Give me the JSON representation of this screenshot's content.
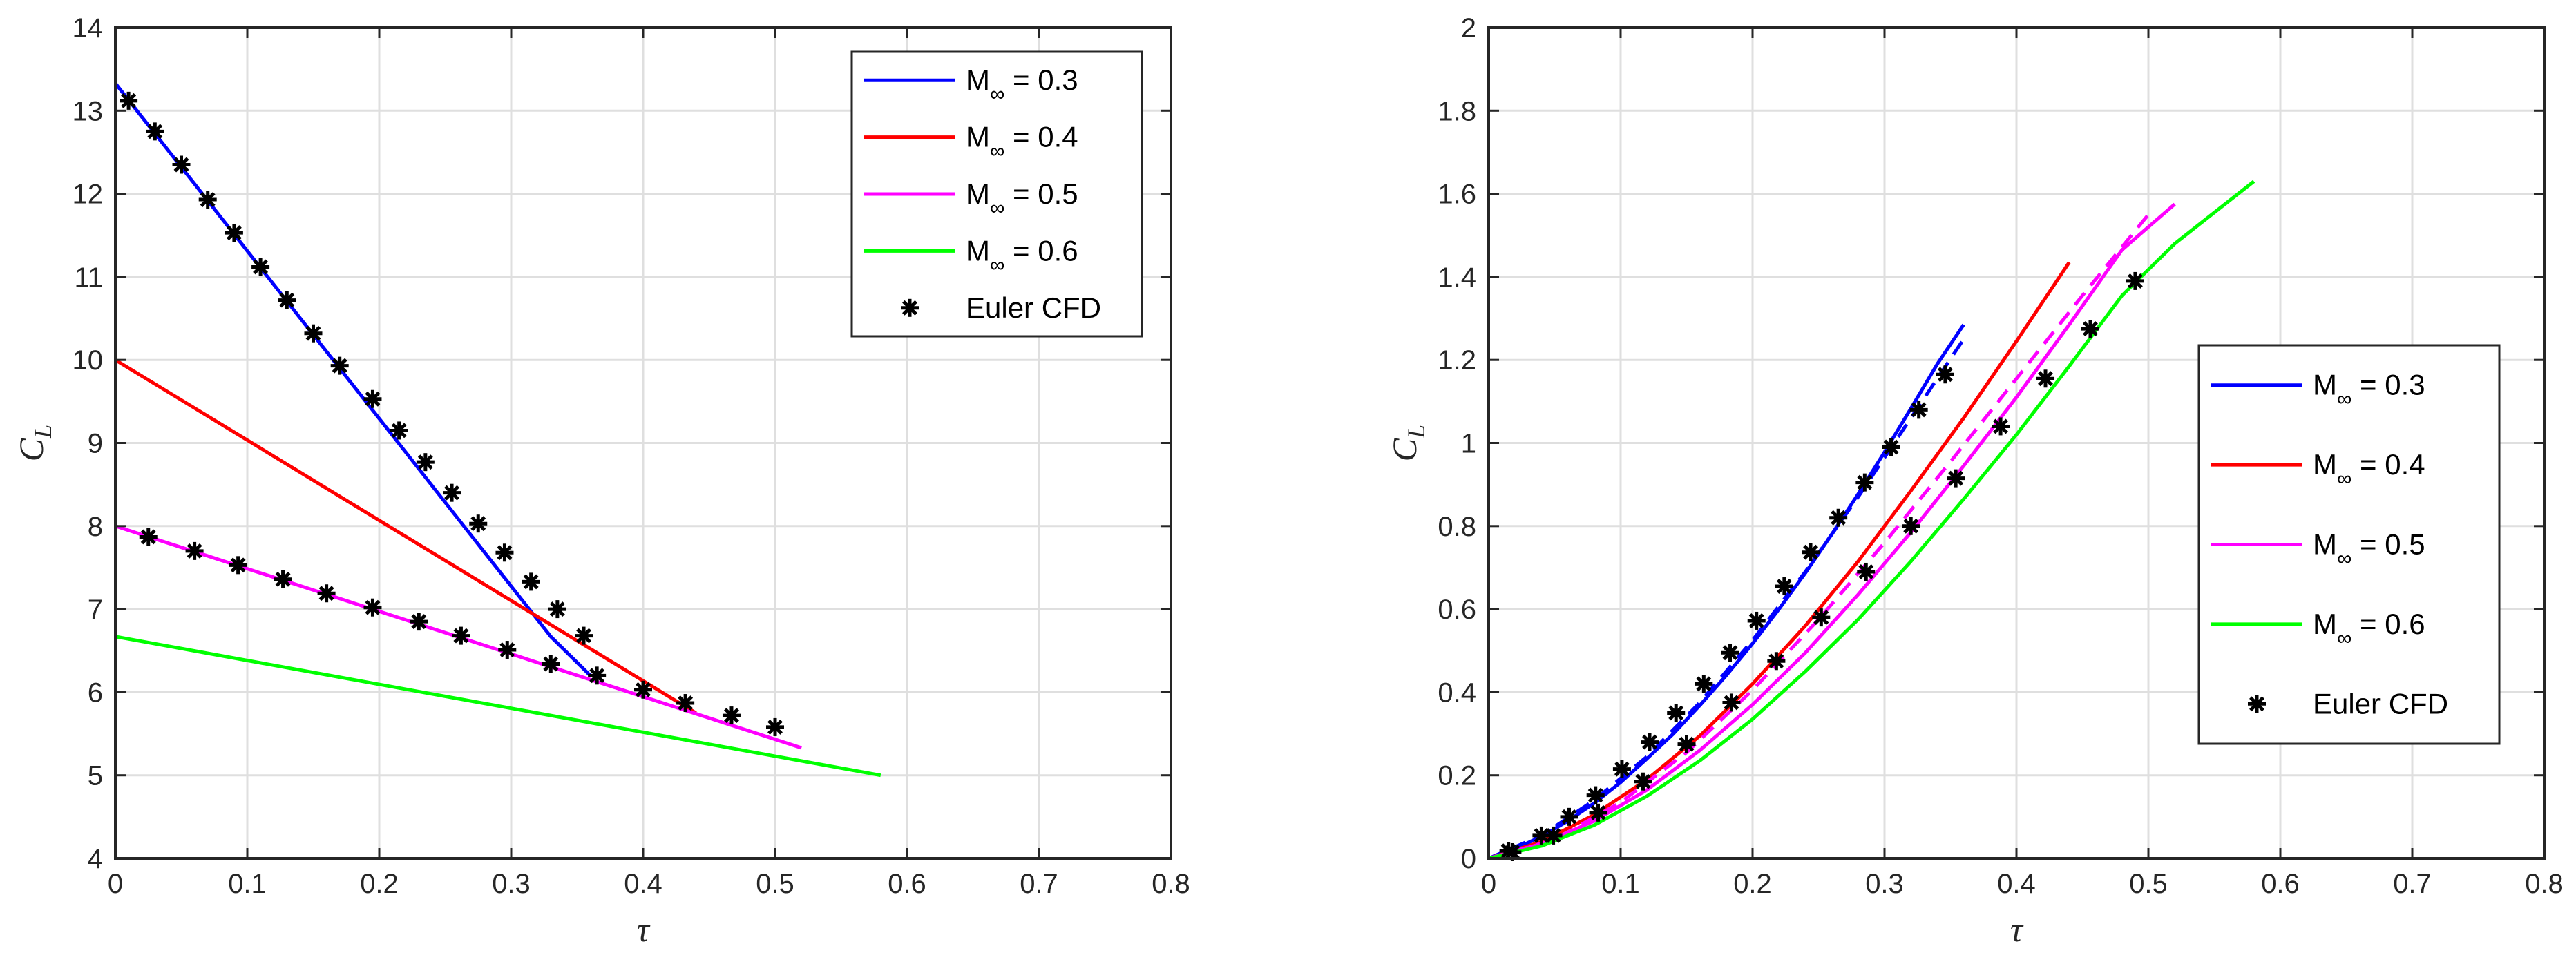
{
  "chart_data": [
    {
      "type": "line",
      "title": "",
      "xlabel": "τ",
      "ylabel": "C_L",
      "xlim": [
        0,
        0.8
      ],
      "ylim": [
        4,
        14
      ],
      "xticks": [
        "0",
        "0.1",
        "0.2",
        "0.3",
        "0.4",
        "0.5",
        "0.6",
        "0.7",
        "0.8"
      ],
      "yticks": [
        "4",
        "5",
        "6",
        "7",
        "8",
        "9",
        "10",
        "11",
        "12",
        "13",
        "14"
      ],
      "grid": true,
      "legend_position": "top-right",
      "series": [
        {
          "name": "M∞ = 0.3",
          "color": "#0000ff",
          "style": "solid",
          "x": [
            0,
            0.33,
            0.36
          ],
          "y": [
            13.33,
            6.67,
            6.2
          ]
        },
        {
          "name": "M∞ = 0.4",
          "color": "#ff0000",
          "style": "solid",
          "x": [
            0,
            0.44
          ],
          "y": [
            10.0,
            5.75
          ]
        },
        {
          "name": "M∞ = 0.5",
          "color": "#ff00ff",
          "style": "solid",
          "x": [
            0,
            0.52
          ],
          "y": [
            8.0,
            5.33
          ]
        },
        {
          "name": "M∞ = 0.6",
          "color": "#00ff00",
          "style": "solid",
          "x": [
            0,
            0.58
          ],
          "y": [
            6.67,
            5.0
          ]
        }
      ],
      "markers": [
        {
          "name": "Euler CFD",
          "color": "#000000",
          "symbol": "*",
          "points": [
            [
              0.01,
              13.12
            ],
            [
              0.03,
              12.75
            ],
            [
              0.05,
              12.35
            ],
            [
              0.07,
              11.93
            ],
            [
              0.09,
              11.53
            ],
            [
              0.11,
              11.12
            ],
            [
              0.13,
              10.72
            ],
            [
              0.15,
              10.32
            ],
            [
              0.17,
              9.93
            ],
            [
              0.195,
              9.53
            ],
            [
              0.215,
              9.15
            ],
            [
              0.235,
              8.77
            ],
            [
              0.255,
              8.4
            ],
            [
              0.275,
              8.03
            ],
            [
              0.295,
              7.68
            ],
            [
              0.315,
              7.33
            ],
            [
              0.335,
              7.0
            ],
            [
              0.355,
              6.68
            ],
            [
              0.365,
              6.2
            ],
            [
              0.4,
              6.03
            ],
            [
              0.432,
              5.87
            ],
            [
              0.467,
              5.72
            ],
            [
              0.5,
              5.58
            ],
            [
              0.025,
              7.87
            ],
            [
              0.06,
              7.7
            ],
            [
              0.093,
              7.53
            ],
            [
              0.127,
              7.36
            ],
            [
              0.16,
              7.19
            ],
            [
              0.195,
              7.02
            ],
            [
              0.23,
              6.85
            ],
            [
              0.262,
              6.68
            ],
            [
              0.297,
              6.51
            ],
            [
              0.33,
              6.34
            ]
          ]
        }
      ]
    },
    {
      "type": "line",
      "title": "",
      "xlabel": "τ",
      "ylabel": "C_L",
      "xlim": [
        0,
        0.8
      ],
      "ylim": [
        0,
        2
      ],
      "xticks": [
        "0",
        "0.1",
        "0.2",
        "0.3",
        "0.4",
        "0.5",
        "0.6",
        "0.7",
        "0.8"
      ],
      "yticks": [
        "0",
        "0.2",
        "0.4",
        "0.6",
        "0.8",
        "1",
        "1.2",
        "1.4",
        "1.6",
        "1.8",
        "2"
      ],
      "grid": true,
      "legend_position": "center-right",
      "series": [
        {
          "name": "M∞ = 0.3",
          "color": "#0000ff",
          "style": "solid",
          "x": [
            0,
            0.02,
            0.04,
            0.06,
            0.08,
            0.1,
            0.12,
            0.14,
            0.16,
            0.18,
            0.2,
            0.22,
            0.24,
            0.26,
            0.28,
            0.3,
            0.32,
            0.34,
            0.36
          ],
          "y": [
            0,
            0.023,
            0.053,
            0.09,
            0.133,
            0.183,
            0.24,
            0.3,
            0.368,
            0.44,
            0.517,
            0.6,
            0.687,
            0.78,
            0.877,
            0.978,
            1.083,
            1.19,
            1.285
          ]
        },
        {
          "name": "",
          "color": "#0000ff",
          "style": "dashed",
          "x": [
            0,
            0.04,
            0.08,
            0.12,
            0.16,
            0.2,
            0.24,
            0.28,
            0.32,
            0.36
          ],
          "y": [
            0,
            0.055,
            0.14,
            0.245,
            0.375,
            0.525,
            0.69,
            0.87,
            1.06,
            1.25
          ]
        },
        {
          "name": "M∞ = 0.4",
          "color": "#ff0000",
          "style": "solid",
          "x": [
            0,
            0.04,
            0.08,
            0.12,
            0.16,
            0.2,
            0.24,
            0.28,
            0.32,
            0.36,
            0.4,
            0.44
          ],
          "y": [
            0,
            0.04,
            0.105,
            0.19,
            0.295,
            0.42,
            0.56,
            0.715,
            0.885,
            1.06,
            1.245,
            1.435
          ]
        },
        {
          "name": "M∞ = 0.5",
          "color": "#ff00ff",
          "style": "solid",
          "x": [
            0,
            0.04,
            0.08,
            0.12,
            0.16,
            0.2,
            0.24,
            0.28,
            0.32,
            0.36,
            0.4,
            0.44,
            0.48,
            0.52
          ],
          "y": [
            0,
            0.035,
            0.09,
            0.165,
            0.26,
            0.37,
            0.495,
            0.635,
            0.785,
            0.945,
            1.11,
            1.285,
            1.465,
            1.575
          ]
        },
        {
          "name": "",
          "color": "#ff00ff",
          "style": "dashed",
          "x": [
            0,
            0.05,
            0.1,
            0.15,
            0.2,
            0.25,
            0.3,
            0.35,
            0.4,
            0.45,
            0.5
          ],
          "y": [
            0,
            0.045,
            0.135,
            0.255,
            0.405,
            0.575,
            0.76,
            0.955,
            1.155,
            1.355,
            1.55
          ]
        },
        {
          "name": "M∞ = 0.6",
          "color": "#00ff00",
          "style": "solid",
          "x": [
            0,
            0.04,
            0.08,
            0.12,
            0.16,
            0.2,
            0.24,
            0.28,
            0.32,
            0.36,
            0.4,
            0.44,
            0.48,
            0.52,
            0.58
          ],
          "y": [
            0,
            0.03,
            0.08,
            0.15,
            0.235,
            0.335,
            0.45,
            0.575,
            0.715,
            0.865,
            1.02,
            1.185,
            1.355,
            1.48,
            1.63
          ]
        }
      ],
      "markers": [
        {
          "name": "Euler CFD",
          "color": "#000000",
          "symbol": "*",
          "points": [
            [
              0.015,
              0.018
            ],
            [
              0.04,
              0.055
            ],
            [
              0.061,
              0.1
            ],
            [
              0.081,
              0.152
            ],
            [
              0.101,
              0.215
            ],
            [
              0.122,
              0.28
            ],
            [
              0.142,
              0.35
            ],
            [
              0.163,
              0.42
            ],
            [
              0.183,
              0.495
            ],
            [
              0.203,
              0.572
            ],
            [
              0.224,
              0.655
            ],
            [
              0.244,
              0.737
            ],
            [
              0.265,
              0.82
            ],
            [
              0.285,
              0.905
            ],
            [
              0.305,
              0.99
            ],
            [
              0.326,
              1.08
            ],
            [
              0.346,
              1.165
            ],
            [
              0.018,
              0.015
            ],
            [
              0.049,
              0.055
            ],
            [
              0.083,
              0.11
            ],
            [
              0.117,
              0.185
            ],
            [
              0.15,
              0.275
            ],
            [
              0.184,
              0.375
            ],
            [
              0.218,
              0.475
            ],
            [
              0.252,
              0.58
            ],
            [
              0.286,
              0.69
            ],
            [
              0.32,
              0.8
            ],
            [
              0.354,
              0.915
            ],
            [
              0.388,
              1.04
            ],
            [
              0.422,
              1.155
            ],
            [
              0.456,
              1.275
            ],
            [
              0.49,
              1.39
            ]
          ]
        }
      ]
    }
  ]
}
